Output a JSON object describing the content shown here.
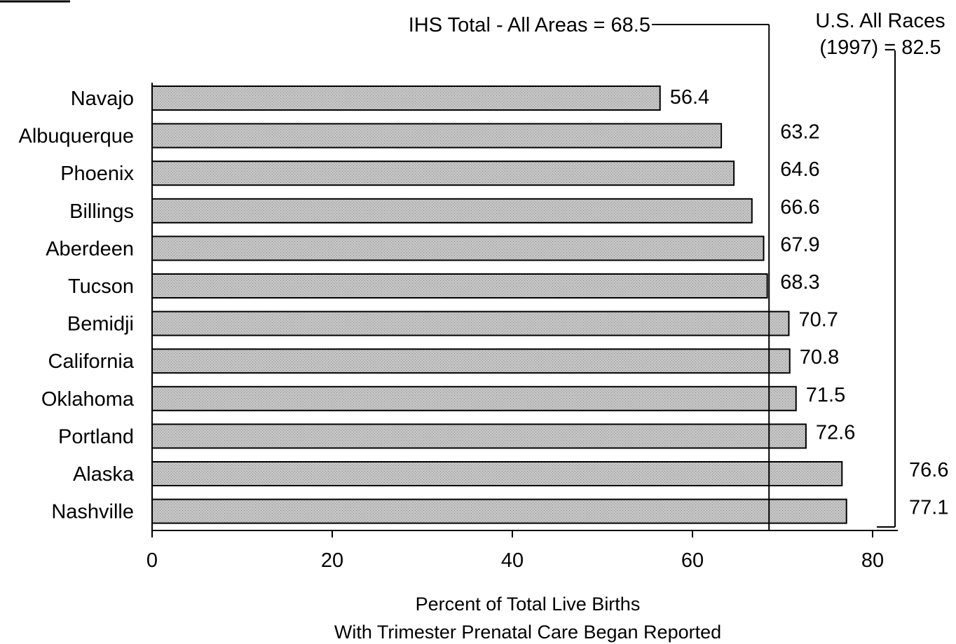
{
  "chart_data": {
    "type": "bar",
    "orientation": "horizontal",
    "title": "",
    "categories": [
      "Navajo",
      "Albuquerque",
      "Phoenix",
      "Billings",
      "Aberdeen",
      "Tucson",
      "Bemidji",
      "California",
      "Oklahoma",
      "Portland",
      "Alaska",
      "Nashville"
    ],
    "values": [
      56.4,
      63.2,
      64.6,
      66.6,
      67.9,
      68.3,
      70.7,
      70.8,
      71.5,
      72.6,
      76.6,
      77.1
    ],
    "value_labels": [
      "56.4",
      "63.2",
      "64.6",
      "66.6",
      "67.9",
      "68.3",
      "70.7",
      "70.8",
      "71.5",
      "72.6",
      "76.6",
      "77.1"
    ],
    "xlim": [
      0,
      80
    ],
    "xticks": [
      0,
      20,
      40,
      60,
      80
    ],
    "xlabel_lines": [
      "Percent of Total Live Births",
      "With Trimester Prenatal Care Began Reported"
    ],
    "ylabel": "",
    "grid": false,
    "legend": "none",
    "reference_lines": [
      {
        "label": "IHS Total - All Areas = 68.5",
        "value": 68.5
      },
      {
        "label_lines": [
          "U.S. All Races",
          "(1997) = 82.5"
        ],
        "value": 82.5
      }
    ],
    "bar_color": "#bdbdbd"
  }
}
